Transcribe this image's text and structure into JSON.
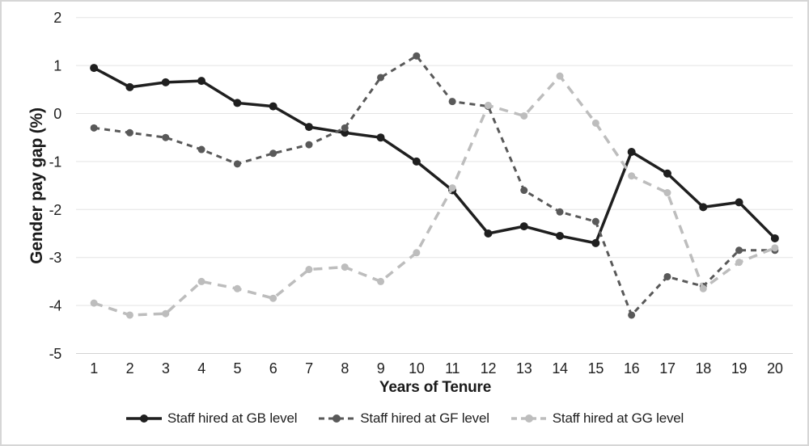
{
  "chart_data": {
    "type": "line",
    "title": "",
    "xlabel": "Years of Tenure",
    "ylabel": "Gender pay gap (%)",
    "x": [
      1,
      2,
      3,
      4,
      5,
      6,
      7,
      8,
      9,
      10,
      11,
      12,
      13,
      14,
      15,
      16,
      17,
      18,
      19,
      20
    ],
    "yticks": [
      2,
      1,
      0,
      -1,
      -2,
      -3,
      -4,
      -5
    ],
    "ylim": [
      -5,
      2
    ],
    "grid": "horizontal",
    "legend_position": "bottom",
    "colors": {
      "gridline": "#e3e3e3",
      "axis_line": "#d2d2d2",
      "text": "#1f1f1f"
    },
    "series": [
      {
        "name": "Staff hired at GB level",
        "style": "solid",
        "color": "#1f1f1f",
        "values": [
          0.95,
          0.55,
          0.65,
          0.68,
          0.22,
          0.15,
          -0.28,
          -0.4,
          -0.5,
          -1.0,
          -1.6,
          -2.5,
          -2.35,
          -2.55,
          -2.7,
          -0.8,
          -1.25,
          -1.95,
          -1.85,
          -2.6
        ]
      },
      {
        "name": "Staff hired at GF level",
        "style": "dashed",
        "color": "#595959",
        "values": [
          -0.3,
          -0.4,
          -0.5,
          -0.75,
          -1.05,
          -0.83,
          -0.65,
          -0.3,
          0.75,
          1.2,
          0.25,
          0.15,
          -1.6,
          -2.05,
          -2.25,
          -4.2,
          -3.4,
          -3.6,
          -2.85,
          -2.85
        ]
      },
      {
        "name": "Staff hired at GG level",
        "style": "dashed",
        "color": "#bdbdbd",
        "values": [
          -3.95,
          -4.2,
          -4.17,
          -3.5,
          -3.65,
          -3.85,
          -3.25,
          -3.2,
          -3.5,
          -2.9,
          -1.55,
          0.17,
          -0.05,
          0.78,
          -0.2,
          -1.3,
          -1.65,
          -3.65,
          -3.1,
          -2.8
        ]
      }
    ]
  }
}
